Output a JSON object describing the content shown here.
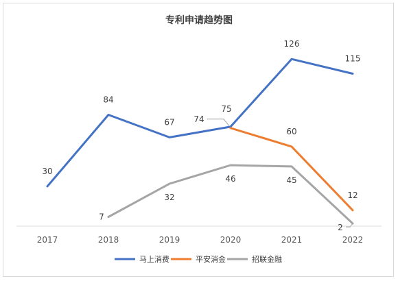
{
  "chart_data": {
    "type": "line",
    "title": "专利申请趋势图",
    "categories": [
      "2017",
      "2018",
      "2019",
      "2020",
      "2021",
      "2022"
    ],
    "ylim": [
      0,
      130
    ],
    "grid": false,
    "legend": "bottom",
    "series": [
      {
        "name": "马上消费",
        "color": "#4472C4",
        "values": [
          30,
          84,
          67,
          75,
          126,
          115
        ]
      },
      {
        "name": "平安消金",
        "color": "#ED7D31",
        "values": [
          null,
          null,
          null,
          74,
          60,
          12
        ]
      },
      {
        "name": "招联金融",
        "color": "#A5A5A5",
        "values": [
          null,
          7,
          32,
          46,
          45,
          2
        ]
      }
    ]
  }
}
